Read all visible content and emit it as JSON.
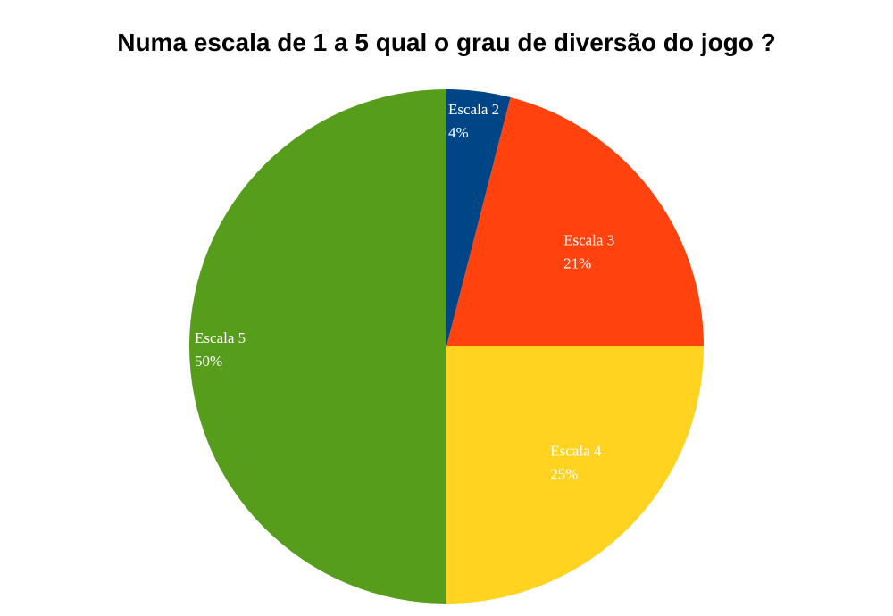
{
  "chart_data": {
    "type": "pie",
    "title": "Numa escala de 1 a 5 qual o grau de diversão do jogo ?",
    "slices": [
      {
        "label": "Escala 2",
        "value": 4,
        "value_label": "4%",
        "color": "#004586"
      },
      {
        "label": "Escala 3",
        "value": 21,
        "value_label": "21%",
        "color": "#ff420e"
      },
      {
        "label": "Escala 4",
        "value": 25,
        "value_label": "25%",
        "color": "#ffd320"
      },
      {
        "label": "Escala 5",
        "value": 50,
        "value_label": "50%",
        "color": "#579d1c"
      }
    ],
    "start_angle": "12 o'clock",
    "direction": "clockwise",
    "legend": "none",
    "labels_inside_slices": true
  }
}
